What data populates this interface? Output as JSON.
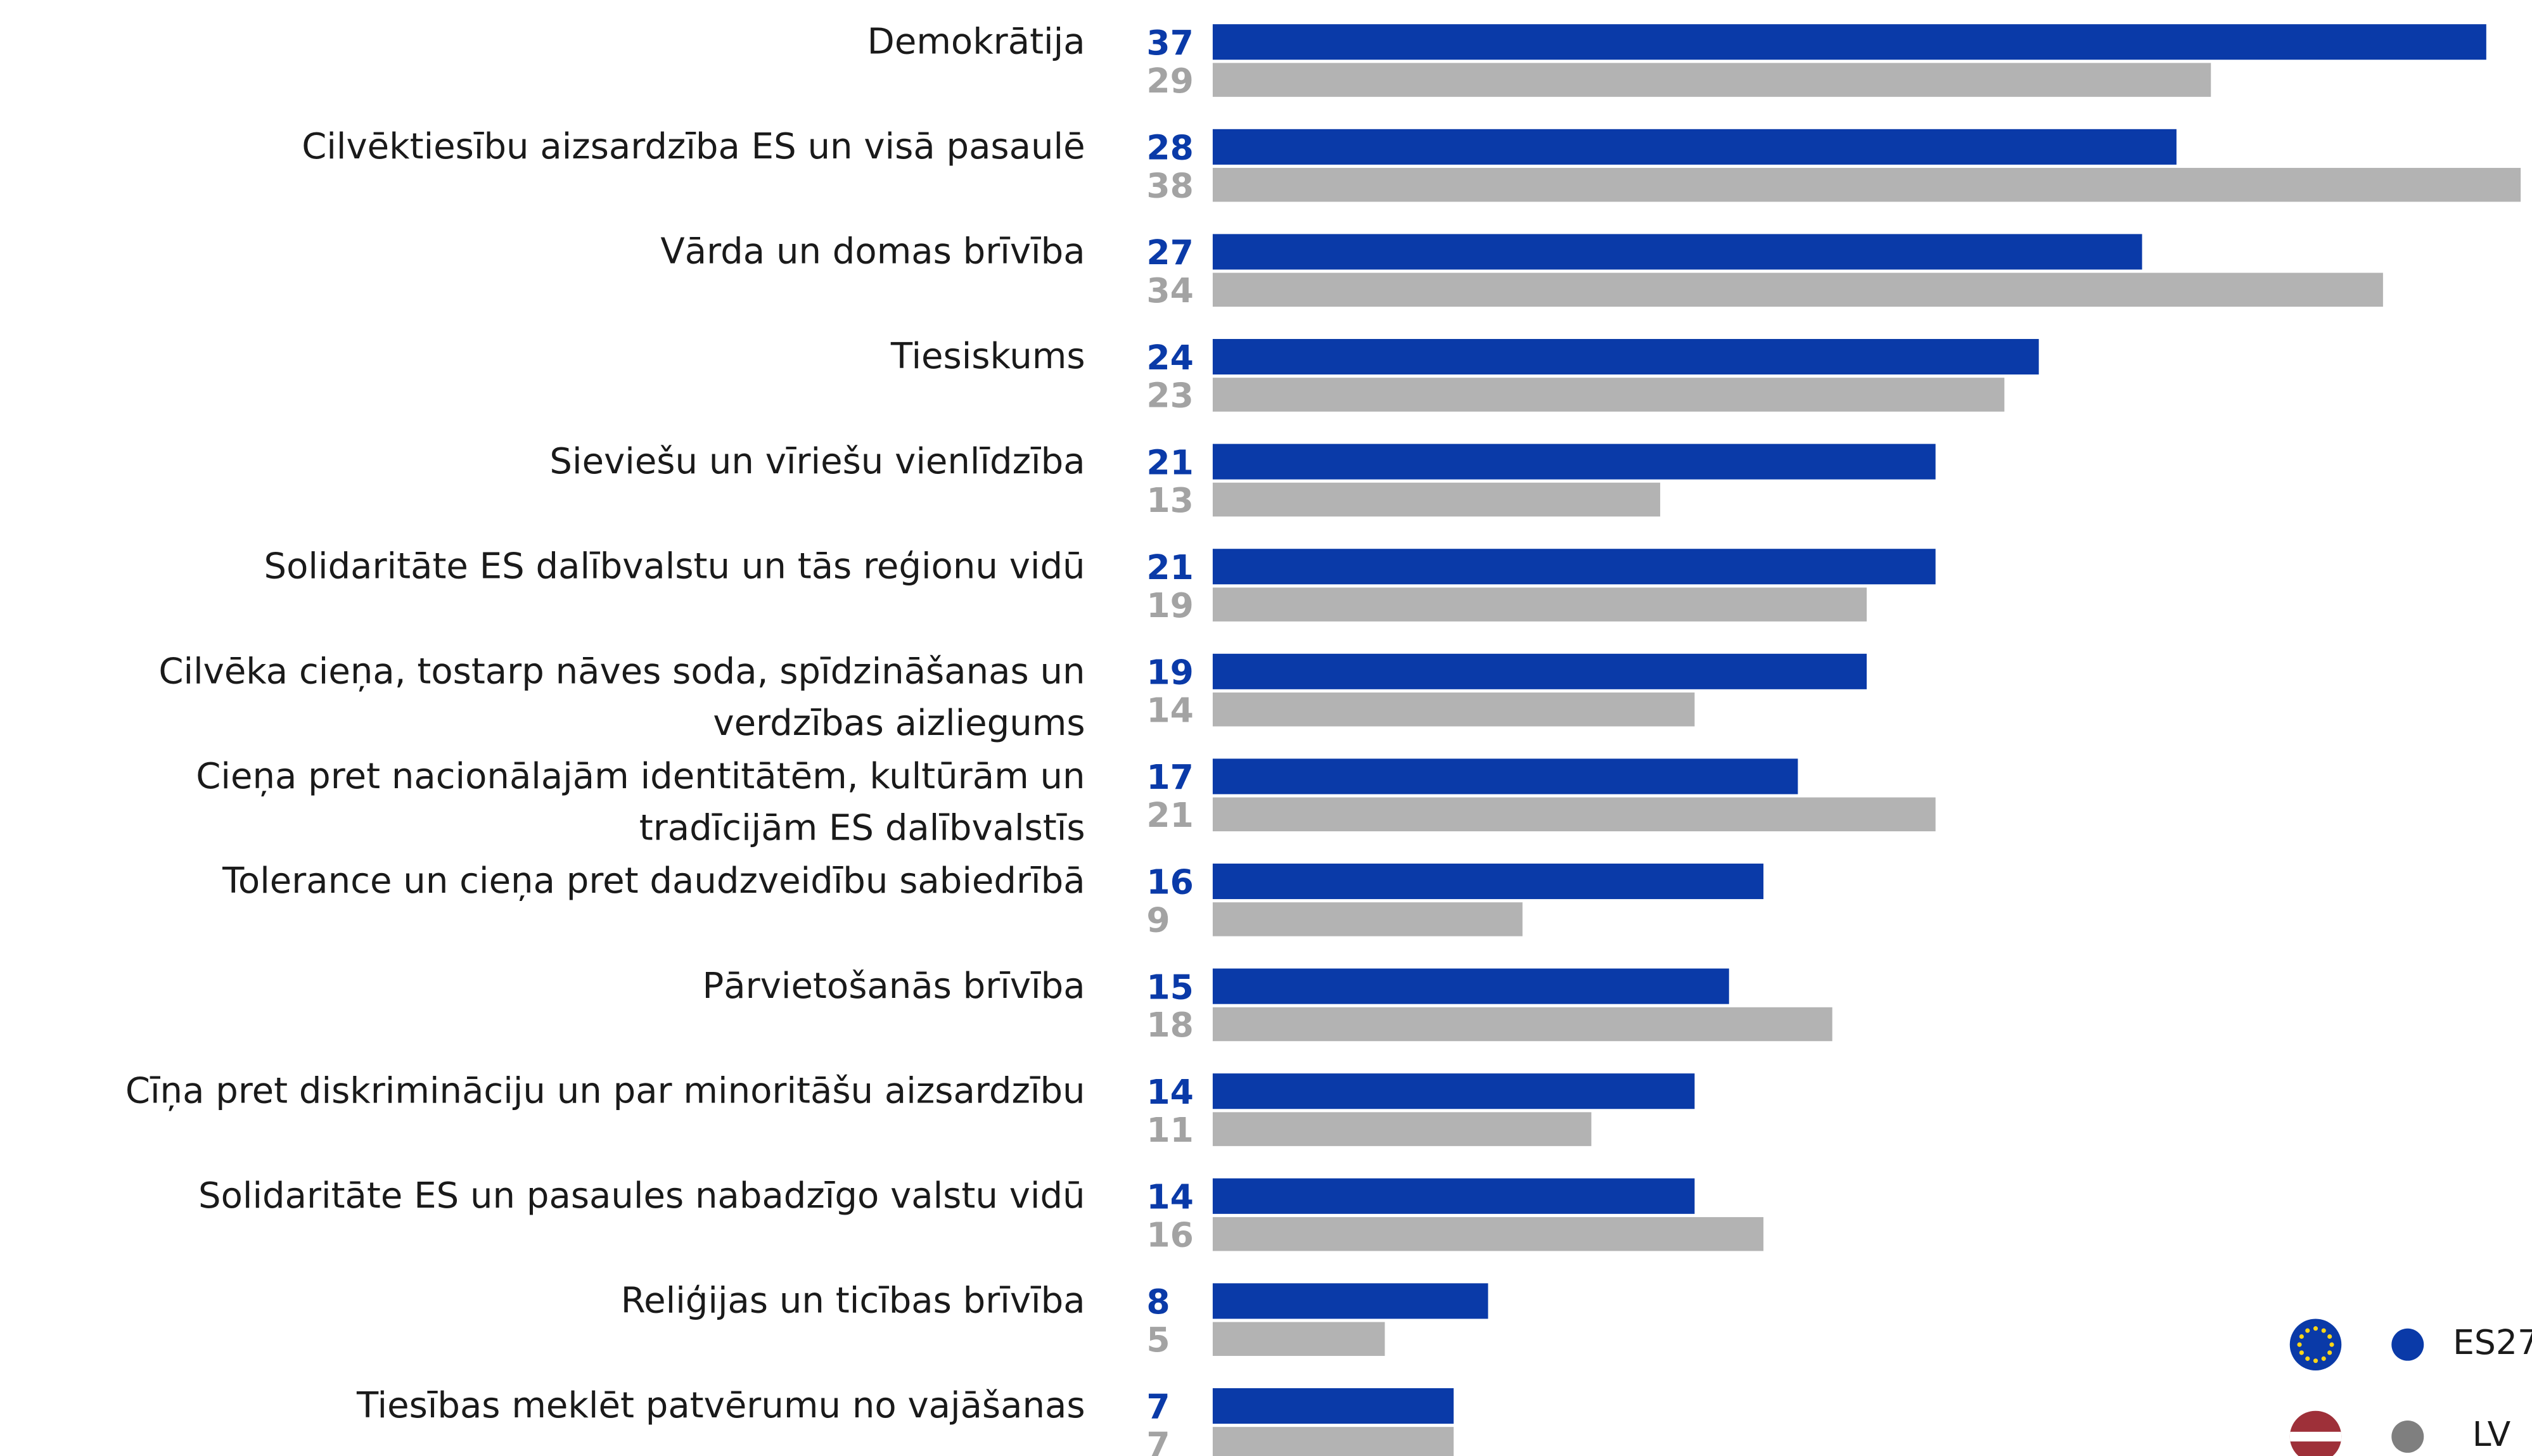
{
  "chart_data": {
    "type": "bar",
    "orientation": "horizontal",
    "categories": [
      "Demokrātija",
      "Cilvēktiesību aizsardzība ES un visā pasaulē",
      "Vārda un domas brīvība",
      "Tiesiskums",
      "Sieviešu un vīriešu vienlīdzība",
      "Solidaritāte ES dalībvalstu un tās reģionu vidū",
      "Cilvēka cieņa, tostarp nāves soda, spīdzināšanas un verdzības aizliegums",
      "Cieņa pret nacionālajām identitātēm, kultūrām un tradīcijām ES dalībvalstīs",
      "Tolerance un cieņa pret daudzveidību sabiedrībā",
      "Pārvietošanās brīvība",
      "Cīņa pret diskrimināciju un par minoritāšu aizsardzību",
      "Solidaritāte ES un pasaules nabadzīgo valstu vidū",
      "Reliģijas un ticības brīvība",
      "Tiesības meklēt patvērumu no vajāšanas"
    ],
    "series": [
      {
        "name": "ES27",
        "color": "#0a3aa8",
        "label_color": "#0a3aa8",
        "values": [
          37,
          28,
          27,
          24,
          21,
          21,
          19,
          17,
          16,
          15,
          14,
          14,
          8,
          7
        ]
      },
      {
        "name": "LV",
        "color": "#b3b3b3",
        "label_color": "#a3a3a3",
        "values": [
          29,
          38,
          34,
          23,
          13,
          19,
          14,
          21,
          9,
          18,
          11,
          16,
          5,
          7
        ]
      }
    ]
  }
}
